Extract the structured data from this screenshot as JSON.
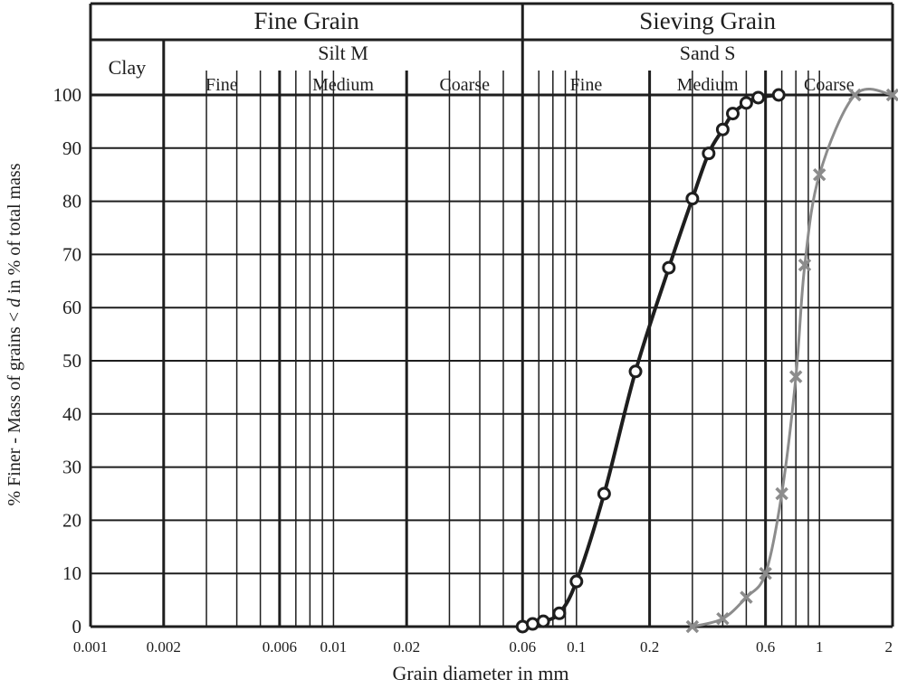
{
  "chart_data": {
    "type": "line",
    "x_scale": "log",
    "xlim": [
      0.001,
      2
    ],
    "ylim": [
      0,
      100
    ],
    "xlabel": "Grain diameter in mm",
    "ylabel_parts": [
      "% Finer - Mass of grains < ",
      "d",
      " in % of total mass"
    ],
    "x_ticks": [
      {
        "value": 0.001,
        "label": "0.001"
      },
      {
        "value": 0.002,
        "label": "0.002"
      },
      {
        "value": 0.006,
        "label": "0.006"
      },
      {
        "value": 0.01,
        "label": "0.01"
      },
      {
        "value": 0.02,
        "label": "0.02"
      },
      {
        "value": 0.06,
        "label": "0.06"
      },
      {
        "value": 0.1,
        "label": "0.1"
      },
      {
        "value": 0.2,
        "label": "0.2"
      },
      {
        "value": 0.6,
        "label": "0.6"
      },
      {
        "value": 1,
        "label": "1"
      },
      {
        "value": 2,
        "label": "2"
      }
    ],
    "y_ticks": [
      0,
      10,
      20,
      30,
      40,
      50,
      60,
      70,
      80,
      90,
      100
    ],
    "grid": {
      "major_x": [
        0.002,
        0.006,
        0.02,
        0.06,
        0.2,
        0.6
      ],
      "minor_x": [
        0.003,
        0.004,
        0.005,
        0.007,
        0.008,
        0.009,
        0.01,
        0.03,
        0.04,
        0.05,
        0.07,
        0.08,
        0.09,
        0.1,
        0.3,
        0.4,
        0.5,
        0.7,
        0.8,
        0.9,
        1
      ]
    },
    "header": {
      "top": [
        {
          "label": "Fine Grain",
          "from": 0.001,
          "to": 0.06
        },
        {
          "label": "Sieving Grain",
          "from": 0.06,
          "to": 2
        }
      ],
      "middle": [
        {
          "label": "Clay",
          "from": 0.001,
          "to": 0.002
        },
        {
          "label": "Silt M",
          "from": 0.002,
          "to": 0.06
        },
        {
          "label": "Sand S",
          "from": 0.06,
          "to": 2
        }
      ],
      "bottom": [
        {
          "label": "Fine",
          "from": 0.002,
          "to": 0.006
        },
        {
          "label": "Medium",
          "from": 0.006,
          "to": 0.02
        },
        {
          "label": "Coarse",
          "from": 0.02,
          "to": 0.06
        },
        {
          "label": "Fine",
          "from": 0.06,
          "to": 0.2
        },
        {
          "label": "Medium",
          "from": 0.2,
          "to": 0.6
        },
        {
          "label": "Coarse",
          "from": 0.6,
          "to": 2
        }
      ]
    },
    "series": [
      {
        "marker": "circle",
        "color": "#1e1e1e",
        "points": [
          [
            0.06,
            0
          ],
          [
            0.066,
            0.5
          ],
          [
            0.073,
            1
          ],
          [
            0.085,
            2.5
          ],
          [
            0.1,
            8.5
          ],
          [
            0.13,
            25
          ],
          [
            0.175,
            48
          ],
          [
            0.24,
            67.5
          ],
          [
            0.3,
            80.5
          ],
          [
            0.35,
            89
          ],
          [
            0.4,
            93.5
          ],
          [
            0.44,
            96.5
          ],
          [
            0.5,
            98.5
          ],
          [
            0.56,
            99.5
          ],
          [
            0.68,
            100
          ]
        ]
      },
      {
        "marker": "x",
        "color": "#8c8c8c",
        "points": [
          [
            0.3,
            0
          ],
          [
            0.4,
            1.5
          ],
          [
            0.5,
            5.5
          ],
          [
            0.6,
            10
          ],
          [
            0.7,
            25
          ],
          [
            0.8,
            47
          ],
          [
            0.87,
            68
          ],
          [
            1.0,
            85
          ],
          [
            1.4,
            100
          ],
          [
            2.0,
            100
          ]
        ]
      }
    ]
  }
}
